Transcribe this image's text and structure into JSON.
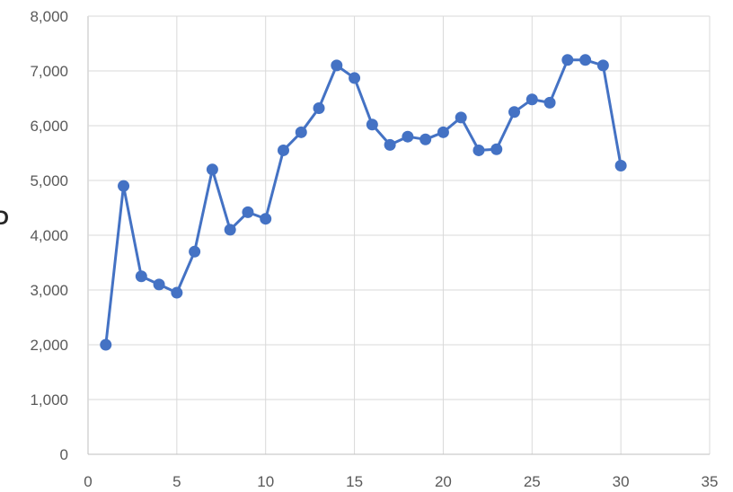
{
  "chart_data": {
    "type": "line",
    "title": "",
    "xlabel": "",
    "ylabel": "",
    "xlim": [
      0,
      35
    ],
    "ylim": [
      0,
      8000
    ],
    "x_ticks": [
      0,
      5,
      10,
      15,
      20,
      25,
      30,
      35
    ],
    "y_ticks": [
      0,
      1000,
      2000,
      3000,
      4000,
      5000,
      6000,
      7000,
      8000
    ],
    "x_tick_labels": [
      "0",
      "5",
      "10",
      "15",
      "20",
      "25",
      "30",
      "35"
    ],
    "y_tick_labels": [
      "0",
      "1,000",
      "2,000",
      "3,000",
      "4,000",
      "5,000",
      "6,000",
      "7,000",
      "8,000"
    ],
    "grid": true,
    "legend": "none",
    "series_color": "#4472c4",
    "series": [
      {
        "x": [
          1,
          2,
          3,
          4,
          5,
          6,
          7,
          8,
          9,
          10,
          11,
          12,
          13,
          14,
          15,
          16,
          17,
          18,
          19,
          20,
          21,
          22,
          23,
          24,
          25,
          26,
          27,
          28,
          29,
          30
        ],
        "values": [
          2000,
          4900,
          3250,
          3100,
          2950,
          3700,
          5200,
          4100,
          4420,
          4300,
          5550,
          5880,
          6320,
          7100,
          6870,
          6020,
          5650,
          5800,
          5750,
          5880,
          6150,
          5550,
          5570,
          6250,
          6480,
          6420,
          7200,
          7200,
          7100,
          5270
        ]
      }
    ],
    "edge_mark": "D"
  }
}
